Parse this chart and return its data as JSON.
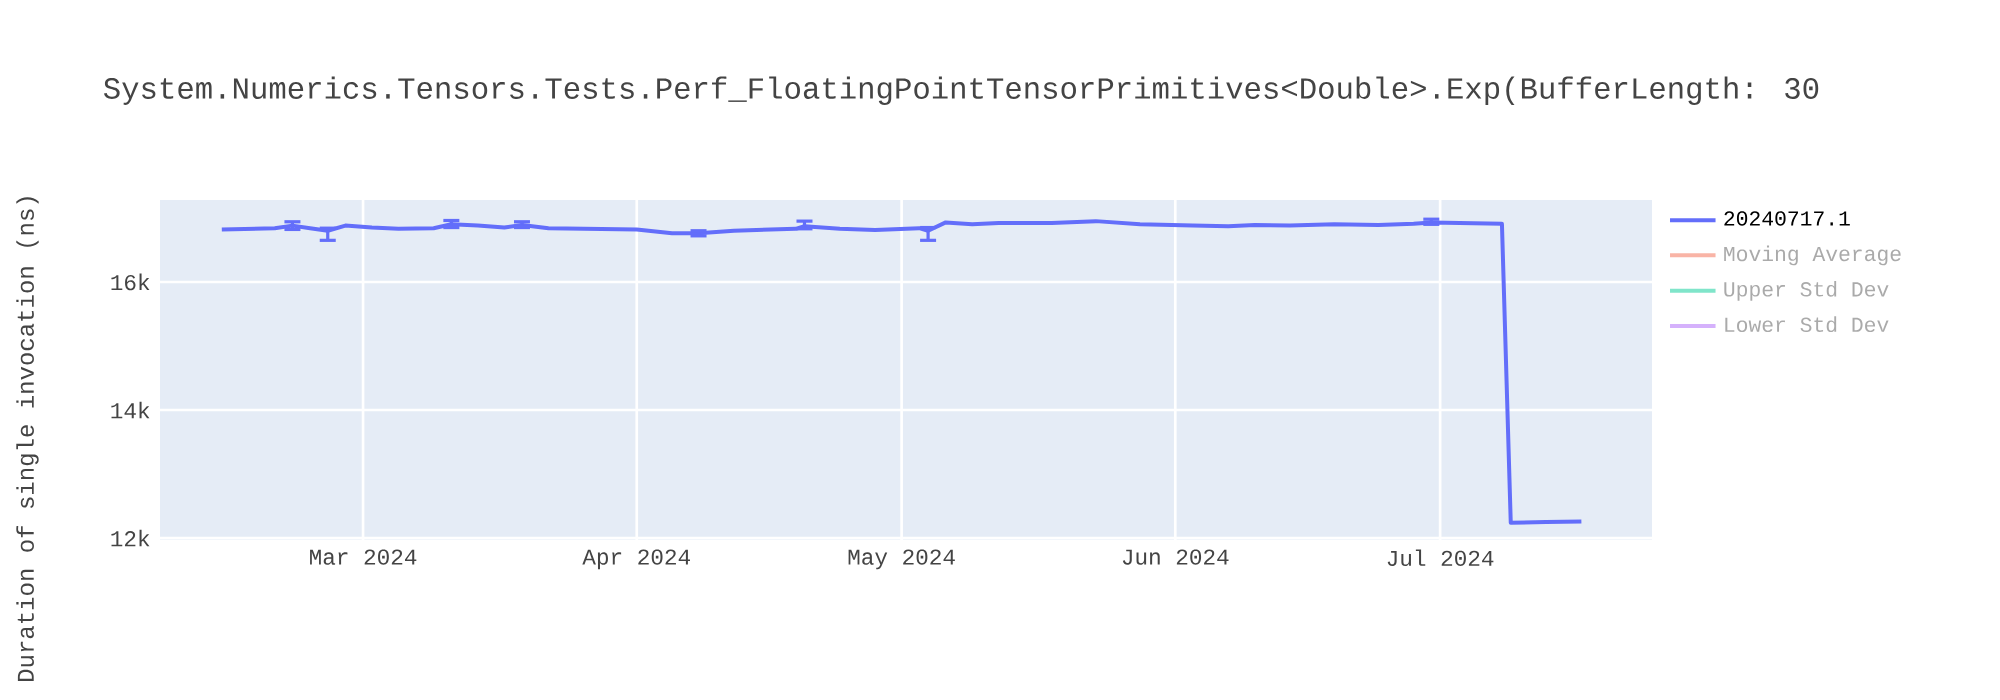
{
  "chart_data": {
    "type": "line",
    "title": "System.Numerics.Tensors.Tests.Perf_FloatingPointTensorPrimitives<Double>.Exp(BufferLength: 30",
    "ylabel": "Duration of single invocation (ns)",
    "x": [
      "2024-02-14",
      "2024-02-20",
      "2024-02-22",
      "2024-02-24",
      "2024-02-26",
      "2024-02-28",
      "2024-03-02",
      "2024-03-05",
      "2024-03-09",
      "2024-03-11",
      "2024-03-14",
      "2024-03-17",
      "2024-03-19",
      "2024-03-22",
      "2024-04-01",
      "2024-04-05",
      "2024-04-08",
      "2024-04-12",
      "2024-04-19",
      "2024-04-20",
      "2024-04-24",
      "2024-04-28",
      "2024-05-03",
      "2024-05-04",
      "2024-05-06",
      "2024-05-09",
      "2024-05-12",
      "2024-05-18",
      "2024-05-23",
      "2024-05-28",
      "2024-06-03",
      "2024-06-07",
      "2024-06-10",
      "2024-06-14",
      "2024-06-19",
      "2024-06-24",
      "2024-06-28",
      "2024-06-30",
      "2024-07-08",
      "2024-07-09",
      "2024-07-13",
      "2024-07-17"
    ],
    "series": [
      {
        "name": "20240717.1",
        "color": "#636efa",
        "values": [
          16820,
          16840,
          16880,
          16840,
          16800,
          16880,
          16850,
          16830,
          16840,
          16900,
          16880,
          16850,
          16890,
          16840,
          16820,
          16760,
          16760,
          16800,
          16830,
          16870,
          16830,
          16810,
          16840,
          16800,
          16930,
          16900,
          16920,
          16920,
          16950,
          16900,
          16880,
          16870,
          16890,
          16880,
          16900,
          16890,
          16910,
          16930,
          16910,
          12240,
          12250,
          12260
        ],
        "errors": [
          null,
          null,
          [
            16820,
            16940
          ],
          null,
          [
            16650,
            16840
          ],
          null,
          null,
          null,
          null,
          [
            16850,
            16960
          ],
          null,
          null,
          [
            16850,
            16940
          ],
          null,
          null,
          null,
          [
            16720,
            16800
          ],
          null,
          null,
          [
            16830,
            16950
          ],
          null,
          null,
          null,
          [
            16650,
            16850
          ],
          null,
          null,
          null,
          null,
          null,
          null,
          null,
          null,
          null,
          null,
          null,
          null,
          null,
          [
            16900,
            16980
          ],
          null,
          null,
          null,
          null
        ]
      },
      {
        "name": "Moving Average",
        "color": "#f9b4a6",
        "values": [
          null,
          null,
          null,
          null,
          null,
          null,
          null,
          null,
          null,
          null,
          null,
          null,
          null,
          null,
          null,
          null,
          null,
          null,
          null,
          null,
          null,
          null,
          null,
          null,
          null,
          null,
          null,
          null,
          null,
          null,
          null,
          null,
          null,
          null,
          null,
          null,
          null,
          null,
          null,
          null,
          null,
          null
        ]
      },
      {
        "name": "Upper Std Dev",
        "color": "#80e5ca",
        "values": [
          null,
          null,
          null,
          null,
          null,
          null,
          null,
          null,
          null,
          null,
          null,
          null,
          null,
          null,
          null,
          null,
          null,
          null,
          null,
          null,
          null,
          null,
          null,
          null,
          null,
          null,
          null,
          null,
          null,
          null,
          null,
          null,
          null,
          null,
          null,
          null,
          null,
          null,
          null,
          null,
          null,
          null
        ]
      },
      {
        "name": "Lower Std Dev",
        "color": "#d5b1fc",
        "values": [
          null,
          null,
          null,
          null,
          null,
          null,
          null,
          null,
          null,
          null,
          null,
          null,
          null,
          null,
          null,
          null,
          null,
          null,
          null,
          null,
          null,
          null,
          null,
          null,
          null,
          null,
          null,
          null,
          null,
          null,
          null,
          null,
          null,
          null,
          null,
          null,
          null,
          null,
          null,
          null,
          null,
          null
        ]
      }
    ],
    "xlim": [
      "2024-02-07",
      "2024-07-25"
    ],
    "xticks": [
      {
        "value": "2024-03-01",
        "label": "Mar 2024"
      },
      {
        "value": "2024-04-01",
        "label": "Apr 2024"
      },
      {
        "value": "2024-05-01",
        "label": "May 2024"
      },
      {
        "value": "2024-06-01",
        "label": "Jun 2024"
      },
      {
        "value": "2024-07-01",
        "label": "Jul 2024"
      }
    ],
    "ylim": [
      11970,
      17280
    ],
    "yticks": [
      {
        "value": 12000,
        "label": "12k"
      },
      {
        "value": 14000,
        "label": "14k"
      },
      {
        "value": 16000,
        "label": "16k"
      }
    ],
    "grid": true,
    "legend": "top right",
    "marker": "none",
    "line_style": "solid"
  }
}
